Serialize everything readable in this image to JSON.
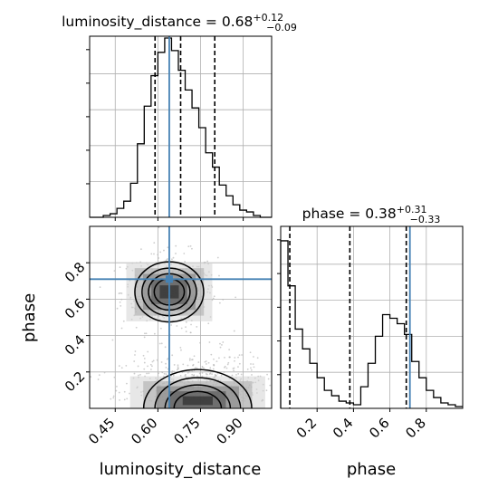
{
  "chart_data": {
    "type": "corner",
    "params": [
      "luminosity_distance",
      "phase"
    ],
    "panels": [
      {
        "id": "hist-luminosity_distance",
        "type": "histogram",
        "title": {
          "name": "luminosity_distance",
          "median": "0.68",
          "plus": "+0.12",
          "minus": "−0.09"
        },
        "xlim": [
          0.36,
          1.0
        ],
        "ylim": [
          0,
          1.0
        ],
        "bin_edges": [
          0.36,
          0.384,
          0.408,
          0.432,
          0.456,
          0.48,
          0.504,
          0.528,
          0.552,
          0.576,
          0.6,
          0.624,
          0.648,
          0.672,
          0.696,
          0.72,
          0.744,
          0.768,
          0.792,
          0.816,
          0.84,
          0.864,
          0.888,
          0.912,
          0.936,
          0.96,
          0.984,
          1.0
        ],
        "counts": [
          0.0,
          0.0,
          0.01,
          0.02,
          0.05,
          0.09,
          0.19,
          0.41,
          0.62,
          0.79,
          0.92,
          1.0,
          0.93,
          0.82,
          0.71,
          0.61,
          0.5,
          0.36,
          0.28,
          0.18,
          0.12,
          0.07,
          0.04,
          0.03,
          0.01,
          0.0,
          0.0
        ],
        "quantile_lines": [
          0.59,
          0.68,
          0.8
        ],
        "truth": 0.64,
        "hide_yticklabels": true
      },
      {
        "id": "hist-phase",
        "type": "histogram",
        "title": {
          "name": "phase",
          "median": "0.38",
          "plus": "+0.31",
          "minus": "−0.33"
        },
        "xlim": [
          0.0,
          1.0
        ],
        "ylim": [
          0,
          1.0
        ],
        "bin_edges": [
          0.0,
          0.04,
          0.08,
          0.12,
          0.16,
          0.2,
          0.24,
          0.28,
          0.32,
          0.36,
          0.4,
          0.44,
          0.48,
          0.52,
          0.56,
          0.6,
          0.64,
          0.68,
          0.72,
          0.76,
          0.8,
          0.84,
          0.88,
          0.92,
          0.96,
          1.0
        ],
        "counts": [
          0.93,
          0.68,
          0.44,
          0.33,
          0.25,
          0.17,
          0.1,
          0.07,
          0.04,
          0.03,
          0.02,
          0.12,
          0.25,
          0.4,
          0.52,
          0.5,
          0.47,
          0.41,
          0.26,
          0.17,
          0.1,
          0.06,
          0.03,
          0.02,
          0.01
        ],
        "quantile_lines": [
          0.05,
          0.38,
          0.69
        ],
        "truth": 0.71,
        "hide_yticklabels": true,
        "xticks": [
          0.2,
          0.4,
          0.6,
          0.8
        ],
        "xticklabels": [
          "0.2",
          "0.4",
          "0.6",
          "0.8"
        ],
        "xlabel": "phase"
      },
      {
        "id": "joint-luminosity_distance-phase",
        "type": "2d-density",
        "xlim": [
          0.36,
          1.0
        ],
        "ylim": [
          0.0,
          1.0
        ],
        "xticks": [
          0.45,
          0.6,
          0.75,
          0.9
        ],
        "xticklabels": [
          "0.45",
          "0.60",
          "0.75",
          "0.90"
        ],
        "yticks": [
          0.2,
          0.4,
          0.6,
          0.8
        ],
        "yticklabels": [
          "0.2",
          "0.4",
          "0.6",
          "0.8"
        ],
        "xlabel": "luminosity_distance",
        "ylabel": "phase",
        "truth": [
          0.64,
          0.71
        ],
        "modes": [
          {
            "center": [
              0.64,
              0.64
            ],
            "sigma": [
              0.07,
              0.09
            ],
            "weight": 0.45
          },
          {
            "center": [
              0.74,
              0.04
            ],
            "sigma": [
              0.11,
              0.11
            ],
            "weight": 0.55
          }
        ]
      }
    ],
    "colors": {
      "hist": "#000000",
      "truth": "#4682b4",
      "grid": "#b0b0b0",
      "scatter": "#b8b8b8"
    },
    "grid": true
  }
}
